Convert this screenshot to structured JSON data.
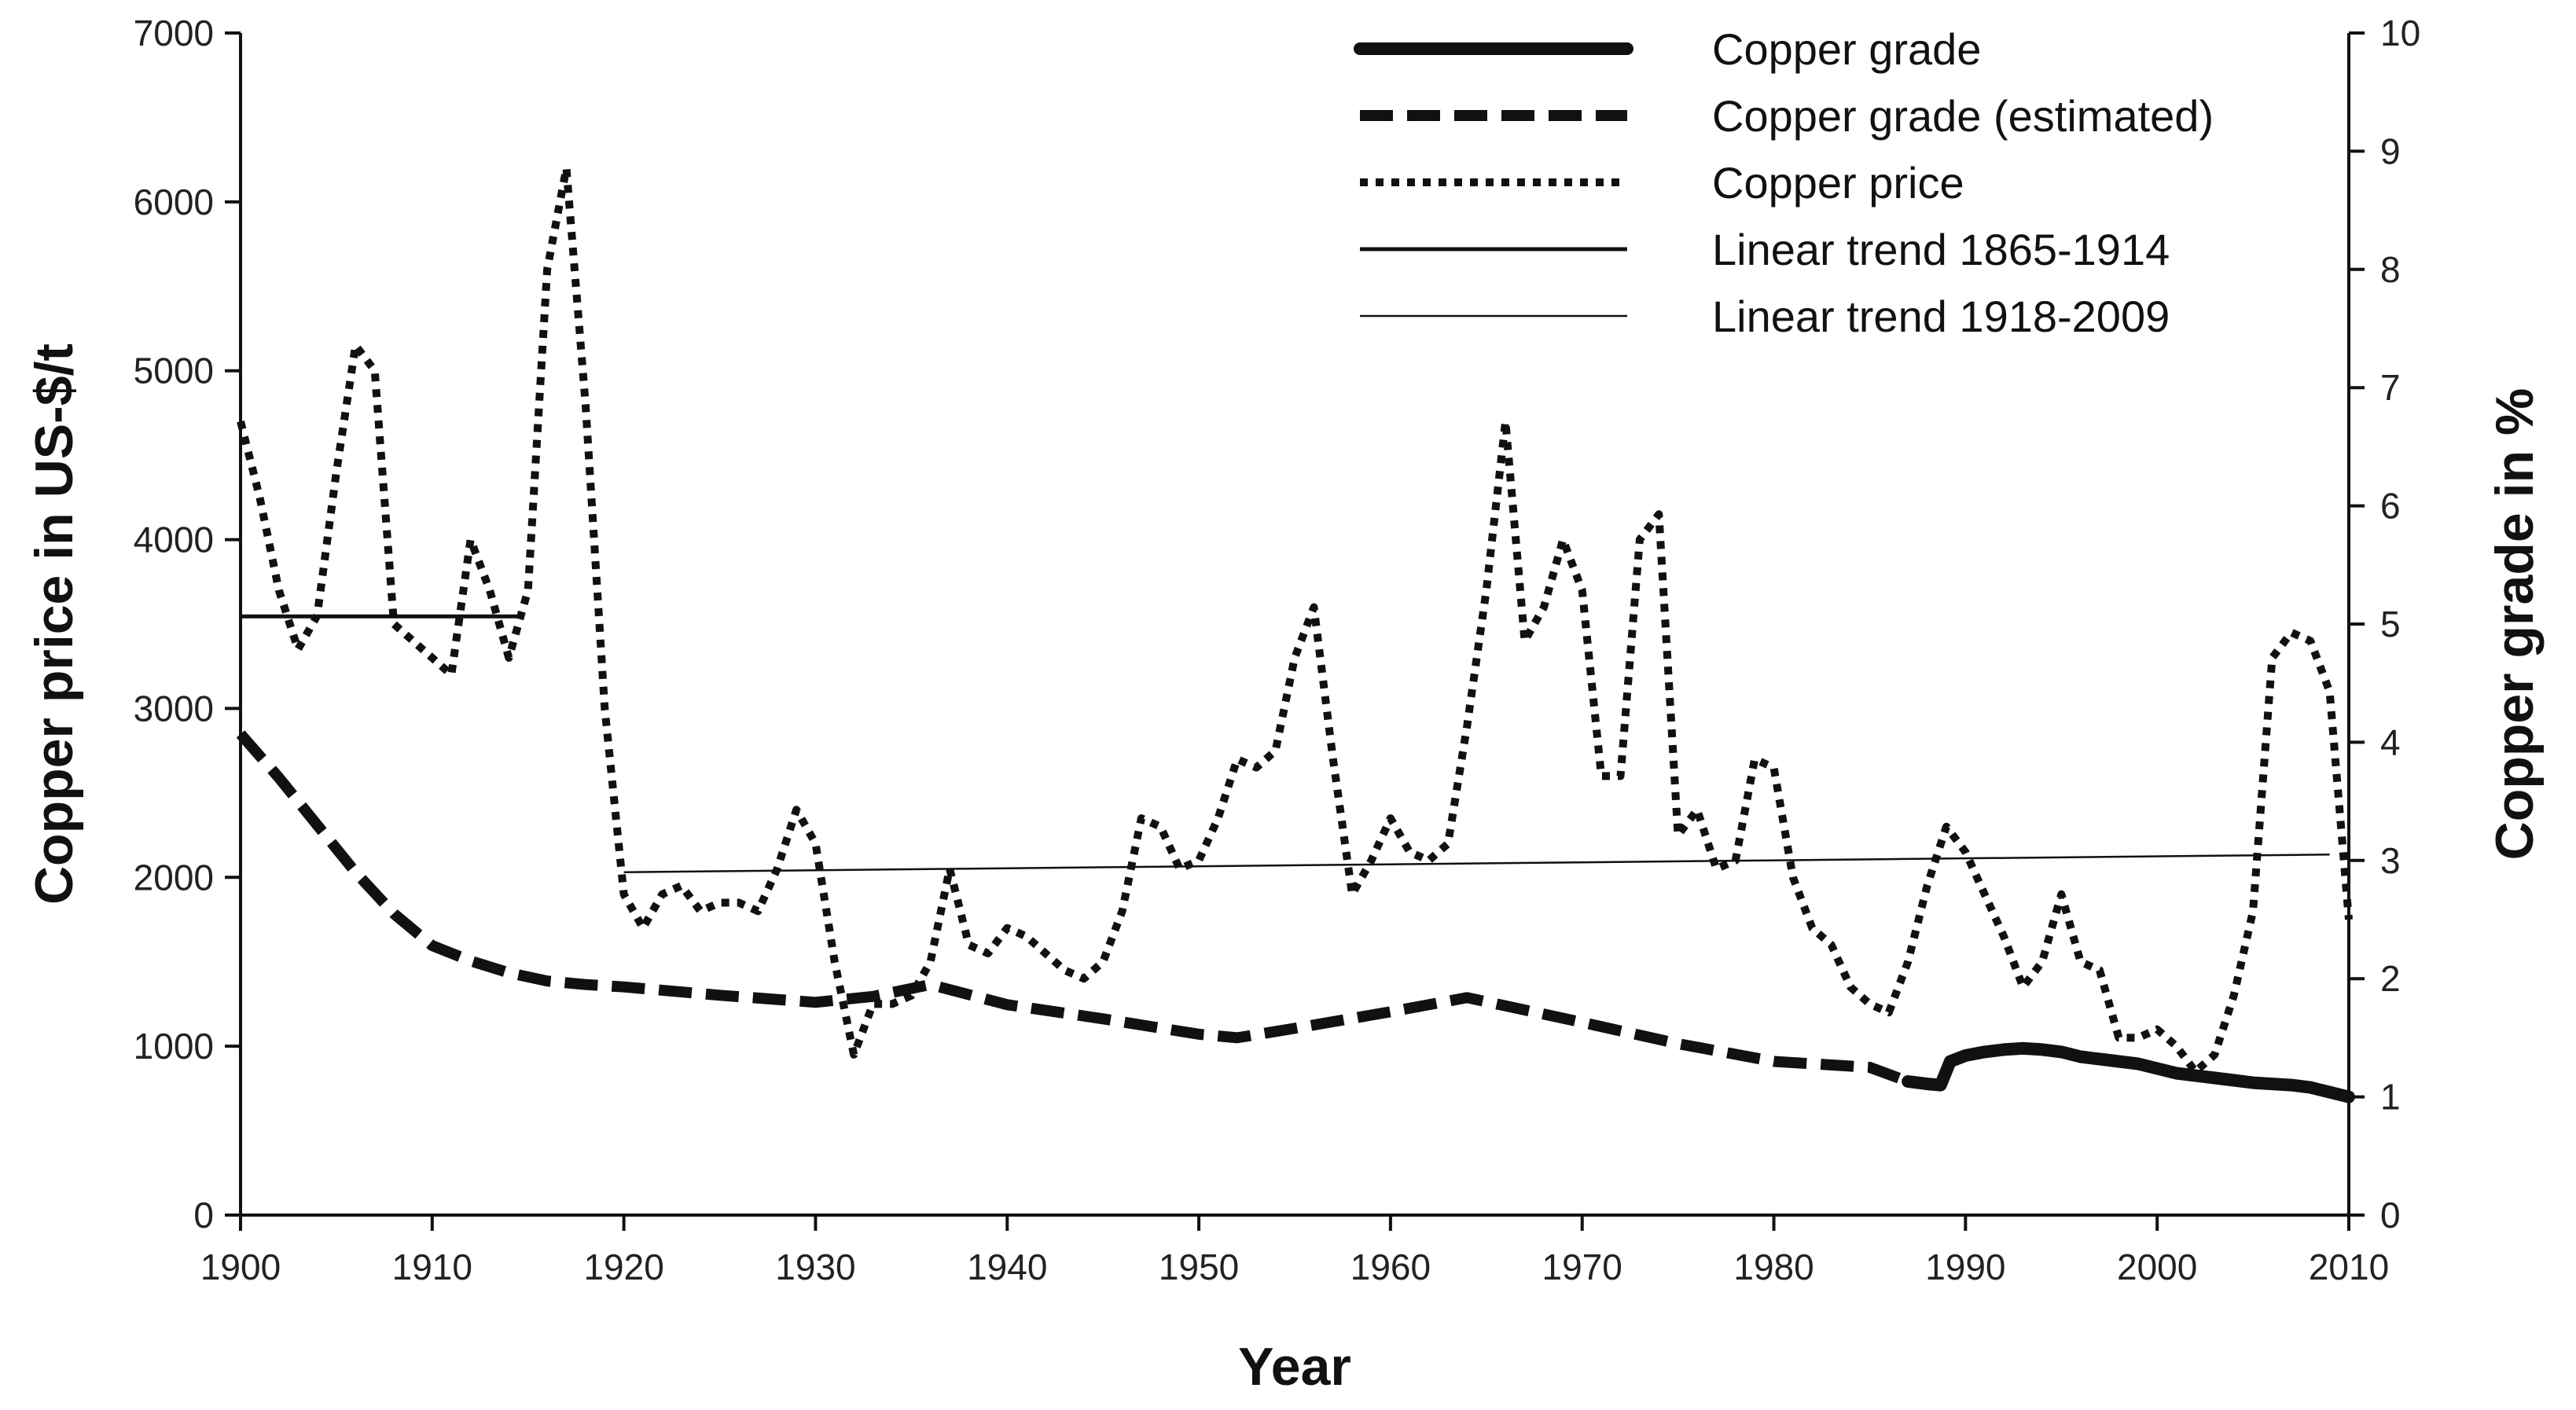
{
  "chart_data": {
    "type": "line",
    "title": "",
    "xlabel": "Year",
    "ylabel_left": "Copper price in US-$/t",
    "ylabel_right": "Copper grade in %",
    "xlim": [
      1900,
      2010
    ],
    "ylim_left": [
      0,
      7000
    ],
    "ylim_right": [
      0,
      10
    ],
    "x_ticks": [
      "1900",
      "1910",
      "1920",
      "1930",
      "1940",
      "1950",
      "1960",
      "1970",
      "1980",
      "1990",
      "2000",
      "2010"
    ],
    "y_left_ticks": [
      "0",
      "1000",
      "2000",
      "3000",
      "4000",
      "5000",
      "6000",
      "7000"
    ],
    "y_right_ticks": [
      "0",
      "1",
      "2",
      "3",
      "4",
      "5",
      "6",
      "7",
      "8",
      "9",
      "10"
    ],
    "grid": false,
    "legend_position": "top-right",
    "series": [
      {
        "name": "Copper grade",
        "axis": "right",
        "style": "solid-thick",
        "color": "#111111",
        "x": [
          1987,
          1988,
          1988.7,
          1989.2,
          1990,
          1991,
          1992,
          1993,
          1994,
          1995,
          1996,
          1997,
          1998,
          1999,
          2000,
          2001,
          2002,
          2003,
          2004,
          2005,
          2006,
          2007,
          2008,
          2009,
          2010
        ],
        "y": [
          1.13,
          1.11,
          1.1,
          1.3,
          1.35,
          1.38,
          1.4,
          1.41,
          1.4,
          1.38,
          1.34,
          1.32,
          1.3,
          1.28,
          1.24,
          1.2,
          1.18,
          1.16,
          1.14,
          1.12,
          1.11,
          1.1,
          1.08,
          1.04,
          1.0
        ]
      },
      {
        "name": "Copper grade (estimated)",
        "axis": "right",
        "style": "dashed-thick",
        "color": "#111111",
        "x": [
          1900,
          1902,
          1904,
          1906,
          1908,
          1910,
          1912,
          1914,
          1916,
          1918,
          1920,
          1925,
          1930,
          1933,
          1936,
          1940,
          1945,
          1950,
          1952,
          1955,
          1960,
          1964,
          1970,
          1975,
          1980,
          1985,
          1987
        ],
        "y": [
          4.07,
          3.7,
          3.3,
          2.9,
          2.55,
          2.28,
          2.15,
          2.05,
          1.98,
          1.95,
          1.93,
          1.86,
          1.8,
          1.85,
          1.95,
          1.78,
          1.66,
          1.53,
          1.5,
          1.58,
          1.72,
          1.84,
          1.63,
          1.45,
          1.3,
          1.25,
          1.13
        ]
      },
      {
        "name": "Copper price",
        "axis": "left",
        "style": "dotted-thick",
        "color": "#111111",
        "x": [
          1900,
          1901,
          1902,
          1903,
          1904,
          1905,
          1906,
          1907,
          1908,
          1909,
          1910,
          1911,
          1912,
          1913,
          1914,
          1915,
          1916,
          1917,
          1918,
          1919,
          1920,
          1921,
          1922,
          1923,
          1924,
          1925,
          1926,
          1927,
          1928,
          1929,
          1930,
          1931,
          1932,
          1933,
          1934,
          1935,
          1936,
          1937,
          1938,
          1939,
          1940,
          1941,
          1942,
          1943,
          1944,
          1945,
          1946,
          1947,
          1948,
          1949,
          1950,
          1951,
          1952,
          1953,
          1954,
          1955,
          1956,
          1957,
          1958,
          1959,
          1960,
          1961,
          1962,
          1963,
          1964,
          1965,
          1966,
          1967,
          1968,
          1969,
          1970,
          1971,
          1972,
          1973,
          1974,
          1975,
          1976,
          1977,
          1978,
          1979,
          1980,
          1981,
          1982,
          1983,
          1984,
          1985,
          1986,
          1987,
          1988,
          1989,
          1990,
          1991,
          1992,
          1993,
          1994,
          1995,
          1996,
          1997,
          1998,
          1999,
          2000,
          2001,
          2002,
          2003,
          2004,
          2005,
          2006,
          2007,
          2008,
          2009,
          2010
        ],
        "y": [
          4700,
          4250,
          3700,
          3350,
          3550,
          4400,
          5150,
          5000,
          3500,
          3400,
          3300,
          3200,
          4000,
          3700,
          3300,
          3700,
          5600,
          6200,
          4800,
          3000,
          1900,
          1700,
          1900,
          1950,
          1800,
          1850,
          1850,
          1800,
          2050,
          2400,
          2200,
          1500,
          950,
          1250,
          1250,
          1300,
          1500,
          2050,
          1600,
          1550,
          1700,
          1650,
          1550,
          1450,
          1400,
          1500,
          1800,
          2350,
          2300,
          2050,
          2100,
          2350,
          2700,
          2650,
          2750,
          3300,
          3600,
          2700,
          1900,
          2100,
          2350,
          2150,
          2100,
          2200,
          2900,
          3700,
          4700,
          3400,
          3600,
          4000,
          3700,
          2600,
          2600,
          4000,
          4150,
          2250,
          2400,
          2050,
          2100,
          2700,
          2650,
          2000,
          1700,
          1600,
          1350,
          1250,
          1200,
          1500,
          1950,
          2300,
          2150,
          1900,
          1650,
          1350,
          1500,
          1900,
          1500,
          1450,
          1050,
          1050,
          1100,
          1000,
          850,
          950,
          1300,
          1800,
          3300,
          3450,
          3400,
          3100,
          1750
        ]
      },
      {
        "name": "Linear trend 1865-1914",
        "axis": "left",
        "style": "solid-medium",
        "color": "#111111",
        "x": [
          1900,
          1914.7
        ],
        "y": [
          3545,
          3545
        ]
      },
      {
        "name": "Linear trend 1918-2009",
        "axis": "left",
        "style": "solid-thin",
        "color": "#111111",
        "x": [
          1920,
          2009
        ],
        "y": [
          2030,
          2135
        ]
      }
    ]
  }
}
